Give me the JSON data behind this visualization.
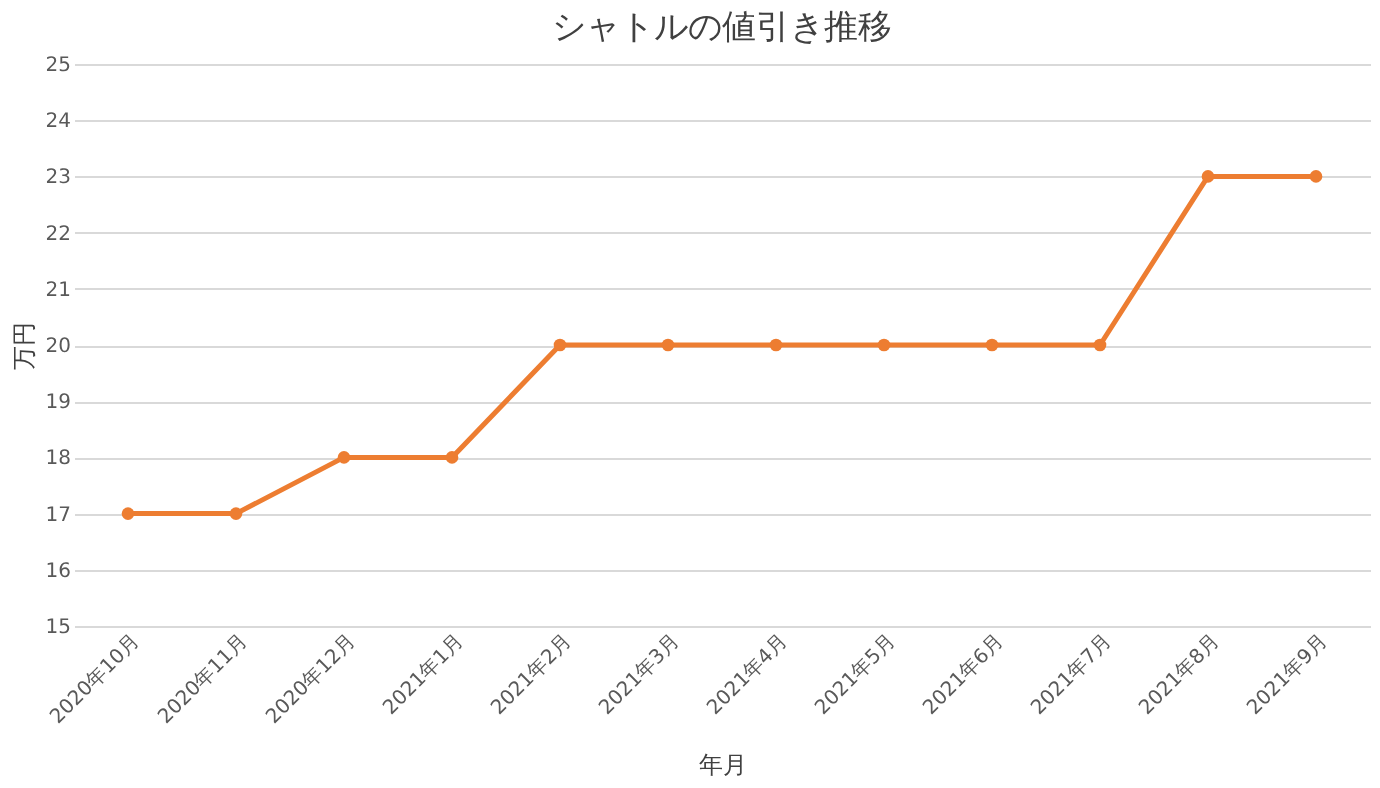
{
  "chart_data": {
    "type": "line",
    "title": "シャトルの値引き推移",
    "xlabel": "年月",
    "ylabel": "万円",
    "categories": [
      "2020年10月",
      "2020年11月",
      "2020年12月",
      "2021年1月",
      "2021年2月",
      "2021年3月",
      "2021年4月",
      "2021年5月",
      "2021年6月",
      "2021年7月",
      "2021年8月",
      "2021年9月"
    ],
    "series": [
      {
        "color": "#ed7d31",
        "values": [
          17,
          17,
          18,
          18,
          20,
          20,
          20,
          20,
          20,
          20,
          23,
          23
        ]
      }
    ],
    "ylim": [
      15,
      25
    ],
    "yticks": [
      15,
      16,
      17,
      18,
      19,
      20,
      21,
      22,
      23,
      24,
      25
    ],
    "grid": "y",
    "marker": "circle",
    "line_style": "solid"
  }
}
